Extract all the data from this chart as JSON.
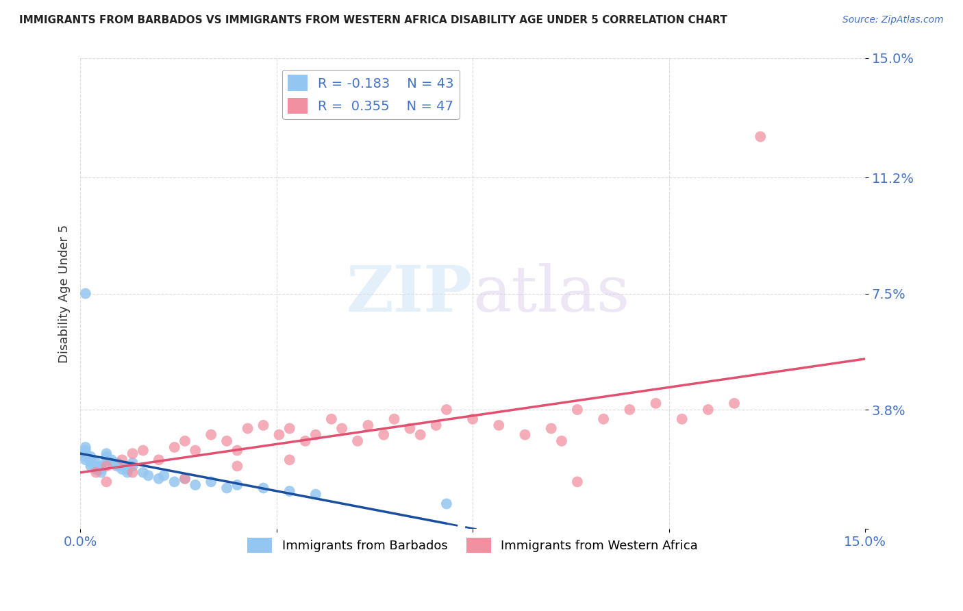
{
  "title": "IMMIGRANTS FROM BARBADOS VS IMMIGRANTS FROM WESTERN AFRICA DISABILITY AGE UNDER 5 CORRELATION CHART",
  "source": "Source: ZipAtlas.com",
  "ylabel": "Disability Age Under 5",
  "xmin": 0.0,
  "xmax": 0.15,
  "ymin": 0.0,
  "ymax": 0.15,
  "ytick_pos": [
    0.0,
    0.038,
    0.075,
    0.112,
    0.15
  ],
  "ytick_labels": [
    "",
    "3.8%",
    "7.5%",
    "11.2%",
    "15.0%"
  ],
  "xtick_pos": [
    0.0,
    0.0375,
    0.075,
    0.1125,
    0.15
  ],
  "xtick_labels": [
    "0.0%",
    "",
    "",
    "",
    "15.0%"
  ],
  "legend_r_barbados": "R = -0.183",
  "legend_n_barbados": "N = 43",
  "legend_r_western": "R =  0.355",
  "legend_n_western": "N = 47",
  "color_barbados": "#93c6f0",
  "color_western": "#f090a0",
  "color_barbados_line": "#1a4fa0",
  "color_western_line": "#e05070",
  "watermark_zip": "ZIP",
  "watermark_atlas": "atlas",
  "legend_bottom_barbados": "Immigrants from Barbados",
  "legend_bottom_western": "Immigrants from Western Africa",
  "barbados_x": [
    0.001,
    0.001,
    0.001,
    0.001,
    0.001,
    0.002,
    0.002,
    0.002,
    0.002,
    0.003,
    0.003,
    0.003,
    0.004,
    0.004,
    0.004,
    0.005,
    0.005,
    0.005,
    0.006,
    0.006,
    0.007,
    0.007,
    0.008,
    0.008,
    0.009,
    0.009,
    0.01,
    0.01,
    0.012,
    0.013,
    0.015,
    0.016,
    0.018,
    0.02,
    0.022,
    0.025,
    0.028,
    0.03,
    0.035,
    0.04,
    0.045,
    0.001,
    0.07
  ],
  "barbados_y": [
    0.022,
    0.023,
    0.024,
    0.025,
    0.026,
    0.02,
    0.021,
    0.022,
    0.023,
    0.019,
    0.02,
    0.021,
    0.018,
    0.019,
    0.02,
    0.022,
    0.023,
    0.024,
    0.021,
    0.022,
    0.02,
    0.021,
    0.019,
    0.02,
    0.018,
    0.019,
    0.02,
    0.021,
    0.018,
    0.017,
    0.016,
    0.017,
    0.015,
    0.016,
    0.014,
    0.015,
    0.013,
    0.014,
    0.013,
    0.012,
    0.011,
    0.075,
    0.008
  ],
  "western_x": [
    0.003,
    0.005,
    0.008,
    0.01,
    0.012,
    0.015,
    0.018,
    0.02,
    0.022,
    0.025,
    0.028,
    0.03,
    0.032,
    0.035,
    0.038,
    0.04,
    0.043,
    0.045,
    0.048,
    0.05,
    0.053,
    0.055,
    0.058,
    0.06,
    0.063,
    0.065,
    0.068,
    0.07,
    0.075,
    0.08,
    0.085,
    0.09,
    0.092,
    0.095,
    0.1,
    0.105,
    0.11,
    0.115,
    0.12,
    0.125,
    0.005,
    0.01,
    0.02,
    0.03,
    0.04,
    0.095,
    0.13
  ],
  "western_y": [
    0.018,
    0.02,
    0.022,
    0.024,
    0.025,
    0.022,
    0.026,
    0.028,
    0.025,
    0.03,
    0.028,
    0.025,
    0.032,
    0.033,
    0.03,
    0.032,
    0.028,
    0.03,
    0.035,
    0.032,
    0.028,
    0.033,
    0.03,
    0.035,
    0.032,
    0.03,
    0.033,
    0.038,
    0.035,
    0.033,
    0.03,
    0.032,
    0.028,
    0.038,
    0.035,
    0.038,
    0.04,
    0.035,
    0.038,
    0.04,
    0.015,
    0.018,
    0.016,
    0.02,
    0.022,
    0.015,
    0.125
  ]
}
